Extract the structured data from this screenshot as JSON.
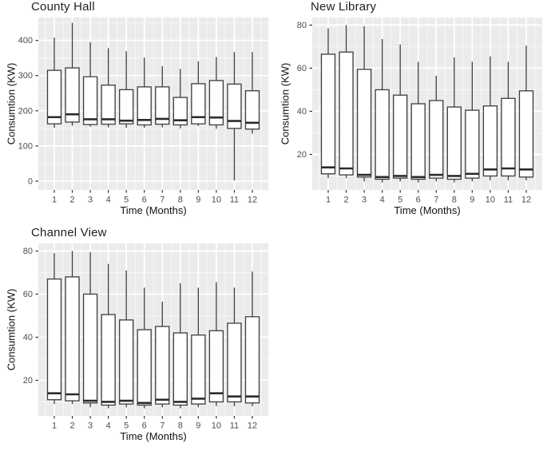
{
  "figure": {
    "background": "#ffffff",
    "description": "Three box-and-whisker plots of monthly energy consumption for three buildings"
  },
  "colors": {
    "panel_bg": "#ebebeb",
    "grid_major": "#ffffff",
    "grid_minor": "#ffffff",
    "box_fill": "#ffffff",
    "box_stroke": "#3c3c3c",
    "median_stroke": "#2b2b2b",
    "tick_mark": "#333333",
    "tick_label": "#4d4d4d",
    "axis_title": "#111111",
    "plot_title": "#1f1f1f"
  },
  "chart_data": [
    {
      "type": "boxplot",
      "title": "County Hall",
      "xlabel": "Time (Months)",
      "ylabel": "Consumtion (KW)",
      "categories": [
        "1",
        "2",
        "3",
        "4",
        "5",
        "6",
        "7",
        "8",
        "9",
        "10",
        "11",
        "12"
      ],
      "ylim": [
        -25,
        465
      ],
      "yticks": [
        0,
        100,
        200,
        300,
        400
      ],
      "yminor": [
        50,
        150,
        250,
        350,
        450
      ],
      "grid": true,
      "legend": "none",
      "boxes": [
        {
          "month": "1",
          "min": 152,
          "q1": 163,
          "median": 182,
          "q3": 315,
          "max": 408
        },
        {
          "month": "2",
          "min": 158,
          "q1": 168,
          "median": 190,
          "q3": 322,
          "max": 450
        },
        {
          "month": "3",
          "min": 155,
          "q1": 161,
          "median": 176,
          "q3": 297,
          "max": 395
        },
        {
          "month": "4",
          "min": 153,
          "q1": 162,
          "median": 176,
          "q3": 273,
          "max": 378
        },
        {
          "month": "5",
          "min": 152,
          "q1": 163,
          "median": 172,
          "q3": 260,
          "max": 369
        },
        {
          "month": "6",
          "min": 152,
          "q1": 160,
          "median": 174,
          "q3": 268,
          "max": 351
        },
        {
          "month": "7",
          "min": 153,
          "q1": 162,
          "median": 177,
          "q3": 268,
          "max": 327
        },
        {
          "month": "8",
          "min": 150,
          "q1": 160,
          "median": 173,
          "q3": 238,
          "max": 319
        },
        {
          "month": "9",
          "min": 157,
          "q1": 163,
          "median": 182,
          "q3": 277,
          "max": 341
        },
        {
          "month": "10",
          "min": 149,
          "q1": 160,
          "median": 181,
          "q3": 286,
          "max": 353
        },
        {
          "month": "11",
          "min": 2,
          "q1": 150,
          "median": 171,
          "q3": 276,
          "max": 367
        },
        {
          "month": "12",
          "min": 135,
          "q1": 148,
          "median": 166,
          "q3": 257,
          "max": 367
        }
      ]
    },
    {
      "type": "boxplot",
      "title": "New Library",
      "xlabel": "Time (Months)",
      "ylabel": "Consumtion (KW)",
      "categories": [
        "1",
        "2",
        "3",
        "4",
        "5",
        "6",
        "7",
        "8",
        "9",
        "10",
        "11",
        "12"
      ],
      "ylim": [
        3.5,
        83.5
      ],
      "yticks": [
        20,
        40,
        60,
        80
      ],
      "yminor": [
        10,
        30,
        50,
        70
      ],
      "grid": true,
      "legend": "none",
      "boxes": [
        {
          "month": "1",
          "min": 9,
          "q1": 11,
          "median": 14,
          "q3": 66.5,
          "max": 78.5
        },
        {
          "month": "2",
          "min": 9,
          "q1": 10.5,
          "median": 13.5,
          "q3": 67.5,
          "max": 80
        },
        {
          "month": "3",
          "min": 7.5,
          "q1": 9.5,
          "median": 10.5,
          "q3": 59.5,
          "max": 79.5
        },
        {
          "month": "4",
          "min": 7,
          "q1": 8.5,
          "median": 9.5,
          "q3": 50,
          "max": 73.5
        },
        {
          "month": "5",
          "min": 7.5,
          "q1": 9,
          "median": 10,
          "q3": 47.5,
          "max": 71
        },
        {
          "month": "6",
          "min": 7,
          "q1": 8.5,
          "median": 9.5,
          "q3": 43.5,
          "max": 63
        },
        {
          "month": "7",
          "min": 7.5,
          "q1": 9,
          "median": 10.5,
          "q3": 45,
          "max": 56.5
        },
        {
          "month": "8",
          "min": 7,
          "q1": 8.5,
          "median": 10,
          "q3": 42,
          "max": 65
        },
        {
          "month": "9",
          "min": 7.5,
          "q1": 9,
          "median": 11,
          "q3": 40.5,
          "max": 63
        },
        {
          "month": "10",
          "min": 8,
          "q1": 10,
          "median": 13,
          "q3": 42.5,
          "max": 65.5
        },
        {
          "month": "11",
          "min": 8,
          "q1": 10,
          "median": 13.5,
          "q3": 46,
          "max": 63
        },
        {
          "month": "12",
          "min": 8,
          "q1": 9.5,
          "median": 13,
          "q3": 49.5,
          "max": 70.5
        }
      ]
    },
    {
      "type": "boxplot",
      "title": "Channel View",
      "xlabel": "Time (Months)",
      "ylabel": "Consumtion (KW)",
      "categories": [
        "1",
        "2",
        "3",
        "4",
        "5",
        "6",
        "7",
        "8",
        "9",
        "10",
        "11",
        "12"
      ],
      "ylim": [
        3.5,
        83.5
      ],
      "yticks": [
        20,
        40,
        60,
        80
      ],
      "yminor": [
        10,
        30,
        50,
        70
      ],
      "grid": true,
      "legend": "none",
      "boxes": [
        {
          "month": "1",
          "min": 9,
          "q1": 11,
          "median": 14,
          "q3": 67,
          "max": 79
        },
        {
          "month": "2",
          "min": 9,
          "q1": 10.5,
          "median": 13.5,
          "q3": 68,
          "max": 80
        },
        {
          "month": "3",
          "min": 7.5,
          "q1": 9.5,
          "median": 10.5,
          "q3": 60,
          "max": 79.5
        },
        {
          "month": "4",
          "min": 7,
          "q1": 8.5,
          "median": 10,
          "q3": 50.5,
          "max": 74
        },
        {
          "month": "5",
          "min": 7.5,
          "q1": 9,
          "median": 10.5,
          "q3": 48,
          "max": 71
        },
        {
          "month": "6",
          "min": 7,
          "q1": 8.5,
          "median": 9.5,
          "q3": 43.5,
          "max": 63
        },
        {
          "month": "7",
          "min": 7.5,
          "q1": 9,
          "median": 11,
          "q3": 45,
          "max": 56.5
        },
        {
          "month": "8",
          "min": 7,
          "q1": 8.5,
          "median": 10,
          "q3": 42,
          "max": 65
        },
        {
          "month": "9",
          "min": 7.5,
          "q1": 9,
          "median": 11.5,
          "q3": 41,
          "max": 63
        },
        {
          "month": "10",
          "min": 8,
          "q1": 10,
          "median": 14,
          "q3": 43,
          "max": 65.5
        },
        {
          "month": "11",
          "min": 8,
          "q1": 10,
          "median": 12.5,
          "q3": 46.5,
          "max": 63
        },
        {
          "month": "12",
          "min": 8,
          "q1": 9.5,
          "median": 12.5,
          "q3": 49.5,
          "max": 70.5
        }
      ]
    }
  ]
}
